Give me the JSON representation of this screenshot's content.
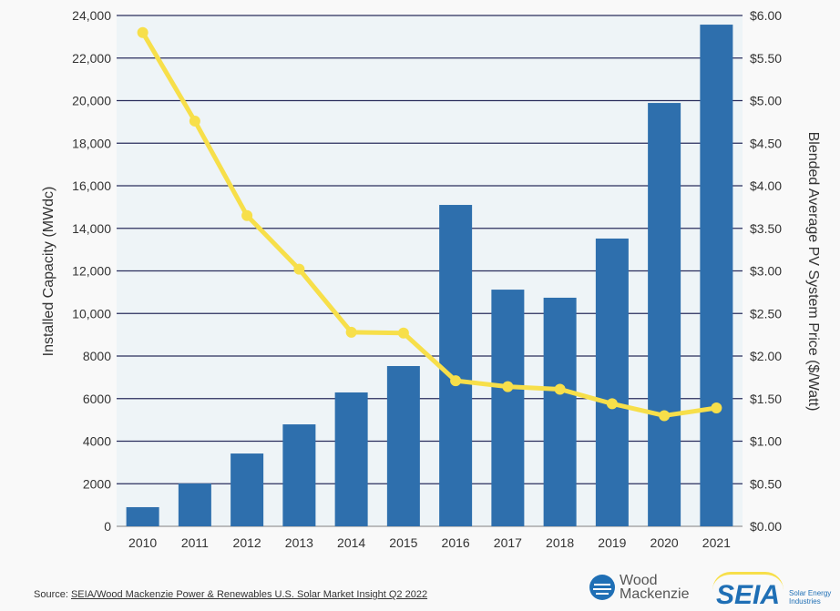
{
  "chart_data": {
    "type": "bar+line",
    "categories": [
      "2010",
      "2011",
      "2012",
      "2013",
      "2014",
      "2015",
      "2016",
      "2017",
      "2018",
      "2019",
      "2020",
      "2021"
    ],
    "series": [
      {
        "axis": "left",
        "type": "bar",
        "color": "#2e6fad",
        "values": [
          900,
          2010,
          3420,
          4790,
          6290,
          7530,
          15100,
          11120,
          10740,
          13520,
          19890,
          23570
        ]
      },
      {
        "axis": "right",
        "type": "line",
        "color": "#f7df4a",
        "values": [
          5.8,
          4.76,
          3.65,
          3.02,
          2.28,
          2.27,
          1.71,
          1.64,
          1.61,
          1.44,
          1.3,
          1.39
        ]
      }
    ],
    "ylabel": "Installed Capacity (MWdc)",
    "y2label": "Blended Average PV System Price ($/Watt)",
    "ylim": [
      0,
      24000
    ],
    "y2lim": [
      0,
      6
    ],
    "yticks": [
      "0",
      "2000",
      "4000",
      "6000",
      "8000",
      "10,000",
      "12,000",
      "14,000",
      "16,000",
      "18,000",
      "20,000",
      "22,000",
      "24,000"
    ],
    "y2ticks": [
      "$0.00",
      "$0.50",
      "$1.00",
      "$1.50",
      "$2.00",
      "$2.50",
      "$3.00",
      "$3.50",
      "$4.00",
      "$4.50",
      "$5.00",
      "$5.50",
      "$6.00"
    ],
    "grid": true
  },
  "footer": {
    "source_prefix": "Source: ",
    "source_link": "SEIA/Wood Mackenzie Power & Renewables U.S. Solar Market Insight Q2 2022"
  },
  "logos": {
    "wood_mackenzie": "Wood Mackenzie",
    "seia": "SEIA",
    "seia_sub": "Solar Energy Industries"
  }
}
